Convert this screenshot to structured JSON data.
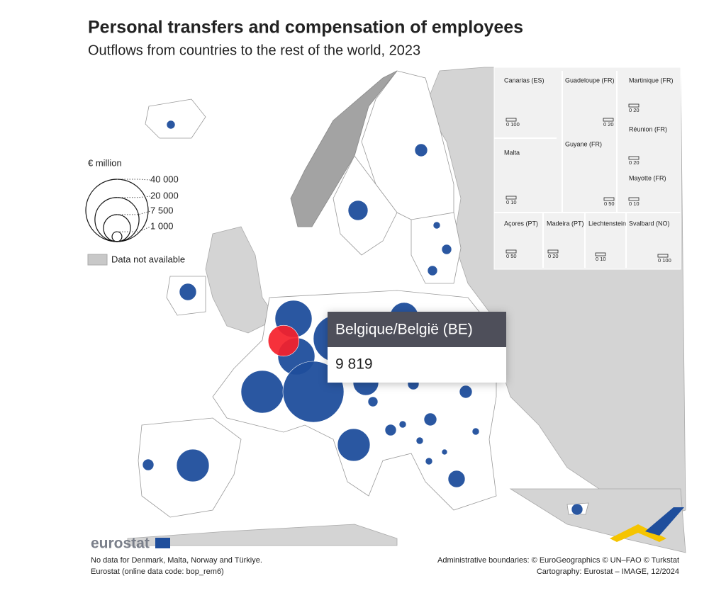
{
  "map": {
    "title": "Personal transfers and compensation of employees",
    "subtitle": "Outflows from countries to the rest of the world, 2023",
    "legend": {
      "title": "€ million",
      "ticks": [
        {
          "value": 40000,
          "label": "40 000"
        },
        {
          "value": 20000,
          "label": "20 000"
        },
        {
          "value": 7500,
          "label": "7 500"
        },
        {
          "value": 1000,
          "label": "1 000"
        }
      ],
      "no_data": "Data not available"
    },
    "bubble_color": "#1f4e9c",
    "highlight_color": "#f5202a",
    "bubbles": [
      750,
      1670,
      4050,
      520,
      1010,
      1010,
      2980,
      14000,
      8260,
      22500,
      14000,
      18600,
      38200,
      6700,
      1320,
      1670,
      1010,
      10900,
      1320,
      520,
      1670,
      520,
      520,
      330,
      520,
      2980,
      1320,
      10900,
      1320
    ],
    "tooltip": {
      "name": "Belgique/België (BE)",
      "value": {
        "value": 9819,
        "label": "9 819"
      }
    },
    "insets": [
      {
        "label": "Canarias (ES)",
        "scale": "0  100"
      },
      {
        "label": "Guadeloupe (FR)",
        "scale": "0  20"
      },
      {
        "label": "Martinique (FR)",
        "scale": "0  20"
      },
      {
        "label": "Réunion (FR)",
        "scale": "0  20"
      },
      {
        "label": "Malta",
        "scale": "0  10"
      },
      {
        "label": "Guyane (FR)",
        "scale": "0  50"
      },
      {
        "label": "Mayotte (FR)",
        "scale": "0  10"
      },
      {
        "label": "Açores (PT)",
        "scale": "0  50"
      },
      {
        "label": "Madeira (PT)",
        "scale": "0  20"
      },
      {
        "label": "Liechtenstein",
        "scale": "0  10"
      },
      {
        "label": "Svalbard (NO)",
        "scale": "0 100"
      }
    ],
    "logo": "eurostat",
    "footnotes_left": [
      "No data for Denmark, Malta, Norway and Türkiye.",
      "Eurostat (online data code: bop_rem6)"
    ],
    "footnotes_right": [
      "Administrative boundaries: © EuroGeographics © UN–FAO © Turkstat",
      "Cartography: Eurostat – IMAGE, 12/2024"
    ]
  }
}
